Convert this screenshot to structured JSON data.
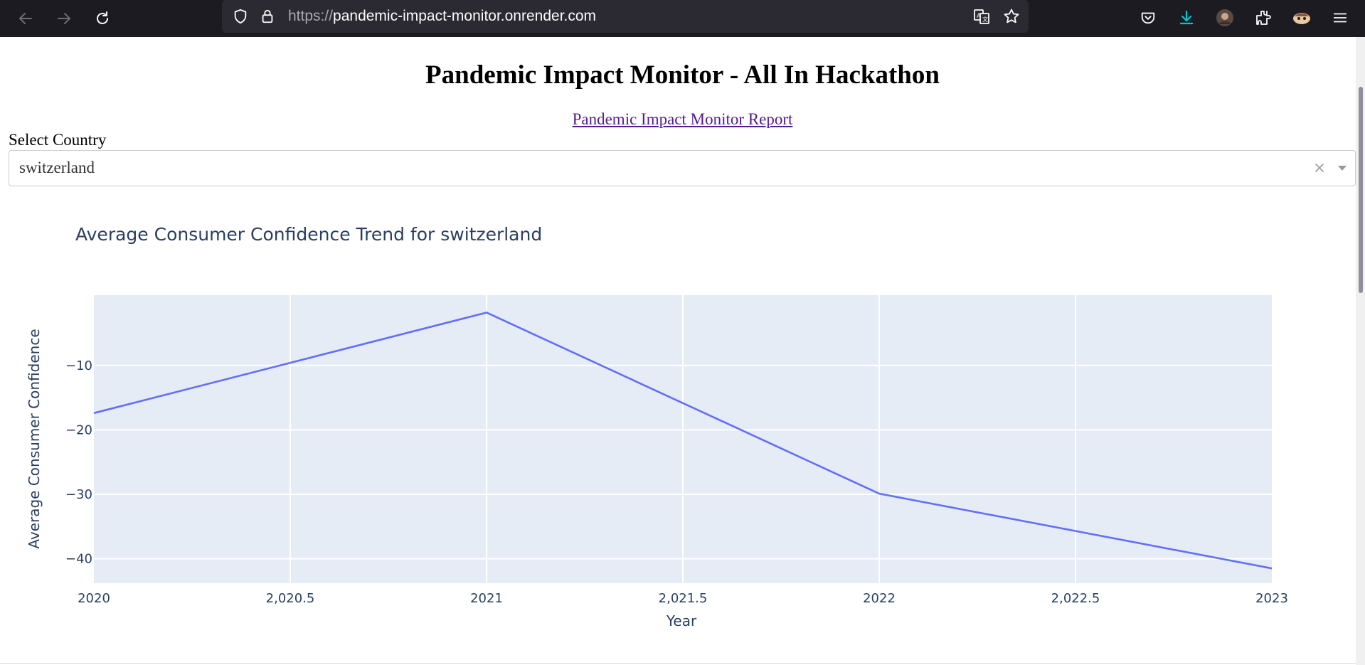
{
  "browser": {
    "url_scheme": "https://",
    "url_host": "pandemic-impact-monitor.onrender.com",
    "icons": [
      "back-icon",
      "forward-icon",
      "reload-icon",
      "shield-icon",
      "lock-icon",
      "translate-icon",
      "star-icon",
      "pocket-icon",
      "download-icon",
      "avatar",
      "extensions-icon",
      "extension-badge-icon",
      "menu-icon"
    ]
  },
  "header": {
    "title": "Pandemic Impact Monitor - All In Hackathon",
    "report_link": "Pandemic Impact Monitor Report"
  },
  "selector": {
    "label": "Select Country",
    "value": "switzerland"
  },
  "chart_data": {
    "type": "line",
    "title": "Average Consumer Confidence Trend for switzerland",
    "xlabel": "Year",
    "ylabel": "Average Consumer Confidence",
    "x": [
      2020,
      2021,
      2022,
      2023
    ],
    "series": [
      {
        "values": [
          -17.4,
          -1.8,
          -29.9,
          -41.5
        ],
        "color": "#636efa"
      }
    ],
    "xlim": [
      2020,
      2023
    ],
    "ylim": [
      -43.8,
      0.9
    ],
    "x_ticks": [
      {
        "value": 2020,
        "label": "2020"
      },
      {
        "value": 2020.5,
        "label": "2,020.5"
      },
      {
        "value": 2021,
        "label": "2021"
      },
      {
        "value": 2021.5,
        "label": "2,021.5"
      },
      {
        "value": 2022,
        "label": "2022"
      },
      {
        "value": 2022.5,
        "label": "2,022.5"
      },
      {
        "value": 2023,
        "label": "2023"
      }
    ],
    "y_ticks": [
      {
        "value": -10,
        "label": "−10"
      },
      {
        "value": -20,
        "label": "−20"
      },
      {
        "value": -30,
        "label": "−30"
      },
      {
        "value": -40,
        "label": "−40"
      }
    ],
    "grid": true,
    "background": "#e5ecf6"
  }
}
